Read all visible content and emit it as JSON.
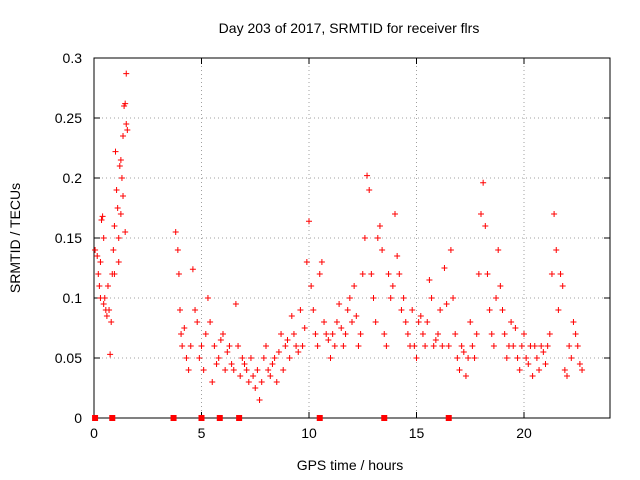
{
  "chart_data": {
    "type": "scatter",
    "title": "Day 203 of 2017, SRMTID for receiver flrs",
    "xlabel": "GPS time / hours",
    "ylabel": "SRMTID / TECUs",
    "xlim": [
      0,
      24
    ],
    "ylim": [
      0,
      0.3
    ],
    "xticks": [
      0,
      5,
      10,
      15,
      20
    ],
    "xtick_labels": [
      "0",
      "5",
      "10",
      "15",
      "20"
    ],
    "yticks": [
      0,
      0.05,
      0.1,
      0.15,
      0.2,
      0.25,
      0.3
    ],
    "ytick_labels": [
      "0",
      "0.05",
      "0.1",
      "0.15",
      "0.2",
      "0.25",
      "0.3"
    ],
    "grid": true,
    "marker": "plus",
    "color": "#ff0000",
    "points": [
      [
        0.05,
        0.14
      ],
      [
        0.15,
        0.135
      ],
      [
        0.2,
        0.12
      ],
      [
        0.25,
        0.11
      ],
      [
        0.3,
        0.13
      ],
      [
        0.35,
        0.165
      ],
      [
        0.4,
        0.168
      ],
      [
        0.45,
        0.15
      ],
      [
        0.5,
        0.1
      ],
      [
        0.55,
        0.09
      ],
      [
        0.6,
        0.085
      ],
      [
        0.65,
        0.11
      ],
      [
        0.7,
        0.09
      ],
      [
        0.75,
        0.053
      ],
      [
        0.8,
        0.08
      ],
      [
        0.85,
        0.12
      ],
      [
        0.9,
        0.14
      ],
      [
        0.95,
        0.16
      ],
      [
        1.0,
        0.222
      ],
      [
        1.05,
        0.19
      ],
      [
        1.1,
        0.175
      ],
      [
        1.15,
        0.13
      ],
      [
        1.2,
        0.21
      ],
      [
        1.25,
        0.215
      ],
      [
        1.3,
        0.2
      ],
      [
        1.35,
        0.235
      ],
      [
        1.4,
        0.26
      ],
      [
        1.45,
        0.262
      ],
      [
        1.5,
        0.245
      ],
      [
        1.55,
        0.24
      ],
      [
        1.5,
        0.287
      ],
      [
        1.45,
        0.155
      ],
      [
        1.35,
        0.185
      ],
      [
        1.25,
        0.17
      ],
      [
        1.15,
        0.15
      ],
      [
        0.95,
        0.12
      ],
      [
        0.45,
        0.095
      ],
      [
        0.3,
        0.1
      ],
      [
        3.8,
        0.155
      ],
      [
        3.9,
        0.14
      ],
      [
        3.95,
        0.12
      ],
      [
        4.0,
        0.09
      ],
      [
        4.05,
        0.07
      ],
      [
        4.1,
        0.06
      ],
      [
        4.2,
        0.075
      ],
      [
        4.3,
        0.05
      ],
      [
        4.4,
        0.04
      ],
      [
        4.5,
        0.06
      ],
      [
        4.6,
        0.124
      ],
      [
        4.7,
        0.09
      ],
      [
        4.8,
        0.08
      ],
      [
        4.9,
        0.05
      ],
      [
        5.0,
        0.06
      ],
      [
        5.1,
        0.04
      ],
      [
        5.2,
        0.07
      ],
      [
        5.3,
        0.1
      ],
      [
        5.4,
        0.08
      ],
      [
        5.5,
        0.03
      ],
      [
        5.6,
        0.06
      ],
      [
        5.7,
        0.045
      ],
      [
        5.8,
        0.05
      ],
      [
        5.9,
        0.065
      ],
      [
        6.0,
        0.07
      ],
      [
        6.1,
        0.04
      ],
      [
        6.2,
        0.055
      ],
      [
        6.3,
        0.06
      ],
      [
        6.4,
        0.045
      ],
      [
        6.5,
        0.04
      ],
      [
        6.6,
        0.095
      ],
      [
        6.7,
        0.06
      ],
      [
        6.8,
        0.035
      ],
      [
        6.9,
        0.05
      ],
      [
        7.0,
        0.045
      ],
      [
        7.1,
        0.04
      ],
      [
        7.2,
        0.03
      ],
      [
        7.3,
        0.05
      ],
      [
        7.4,
        0.035
      ],
      [
        7.5,
        0.025
      ],
      [
        7.6,
        0.04
      ],
      [
        7.7,
        0.015
      ],
      [
        7.8,
        0.03
      ],
      [
        7.9,
        0.05
      ],
      [
        8.0,
        0.06
      ],
      [
        8.1,
        0.04
      ],
      [
        8.2,
        0.035
      ],
      [
        8.3,
        0.045
      ],
      [
        8.4,
        0.05
      ],
      [
        8.5,
        0.03
      ],
      [
        8.6,
        0.055
      ],
      [
        8.7,
        0.07
      ],
      [
        8.8,
        0.04
      ],
      [
        8.9,
        0.06
      ],
      [
        9.0,
        0.065
      ],
      [
        9.1,
        0.05
      ],
      [
        9.2,
        0.085
      ],
      [
        9.3,
        0.07
      ],
      [
        9.4,
        0.06
      ],
      [
        9.5,
        0.055
      ],
      [
        9.6,
        0.09
      ],
      [
        9.7,
        0.06
      ],
      [
        9.8,
        0.075
      ],
      [
        9.9,
        0.13
      ],
      [
        10.0,
        0.164
      ],
      [
        10.1,
        0.11
      ],
      [
        10.2,
        0.09
      ],
      [
        10.3,
        0.07
      ],
      [
        10.4,
        0.06
      ],
      [
        10.5,
        0.12
      ],
      [
        10.6,
        0.13
      ],
      [
        10.7,
        0.08
      ],
      [
        10.8,
        0.07
      ],
      [
        10.9,
        0.065
      ],
      [
        11.0,
        0.05
      ],
      [
        11.1,
        0.07
      ],
      [
        11.2,
        0.06
      ],
      [
        11.3,
        0.08
      ],
      [
        11.4,
        0.095
      ],
      [
        11.5,
        0.075
      ],
      [
        11.6,
        0.06
      ],
      [
        11.7,
        0.07
      ],
      [
        11.8,
        0.09
      ],
      [
        11.9,
        0.1
      ],
      [
        12.0,
        0.08
      ],
      [
        12.1,
        0.11
      ],
      [
        12.2,
        0.085
      ],
      [
        12.3,
        0.06
      ],
      [
        12.4,
        0.07
      ],
      [
        12.5,
        0.12
      ],
      [
        12.6,
        0.15
      ],
      [
        12.7,
        0.202
      ],
      [
        12.8,
        0.19
      ],
      [
        12.9,
        0.12
      ],
      [
        13.0,
        0.1
      ],
      [
        13.1,
        0.08
      ],
      [
        13.2,
        0.15
      ],
      [
        13.3,
        0.16
      ],
      [
        13.4,
        0.14
      ],
      [
        13.5,
        0.07
      ],
      [
        13.6,
        0.06
      ],
      [
        13.7,
        0.12
      ],
      [
        13.8,
        0.1
      ],
      [
        13.9,
        0.11
      ],
      [
        14.0,
        0.17
      ],
      [
        14.1,
        0.135
      ],
      [
        14.2,
        0.12
      ],
      [
        14.3,
        0.09
      ],
      [
        14.4,
        0.1
      ],
      [
        14.5,
        0.08
      ],
      [
        14.6,
        0.07
      ],
      [
        14.7,
        0.06
      ],
      [
        14.8,
        0.09
      ],
      [
        14.9,
        0.06
      ],
      [
        15.0,
        0.05
      ],
      [
        15.1,
        0.08
      ],
      [
        15.2,
        0.085
      ],
      [
        15.3,
        0.07
      ],
      [
        15.4,
        0.06
      ],
      [
        15.5,
        0.08
      ],
      [
        15.6,
        0.115
      ],
      [
        15.7,
        0.1
      ],
      [
        15.8,
        0.06
      ],
      [
        15.9,
        0.065
      ],
      [
        16.0,
        0.07
      ],
      [
        16.1,
        0.09
      ],
      [
        16.2,
        0.06
      ],
      [
        16.3,
        0.125
      ],
      [
        16.4,
        0.095
      ],
      [
        16.5,
        0.06
      ],
      [
        16.6,
        0.14
      ],
      [
        16.7,
        0.1
      ],
      [
        16.8,
        0.07
      ],
      [
        16.9,
        0.05
      ],
      [
        17.0,
        0.04
      ],
      [
        17.1,
        0.06
      ],
      [
        17.2,
        0.055
      ],
      [
        17.3,
        0.035
      ],
      [
        17.4,
        0.05
      ],
      [
        17.5,
        0.08
      ],
      [
        17.6,
        0.06
      ],
      [
        17.7,
        0.05
      ],
      [
        17.8,
        0.07
      ],
      [
        17.9,
        0.12
      ],
      [
        18.0,
        0.17
      ],
      [
        18.1,
        0.196
      ],
      [
        18.2,
        0.16
      ],
      [
        18.3,
        0.12
      ],
      [
        18.4,
        0.09
      ],
      [
        18.5,
        0.07
      ],
      [
        18.6,
        0.06
      ],
      [
        18.7,
        0.1
      ],
      [
        18.8,
        0.14
      ],
      [
        18.9,
        0.11
      ],
      [
        19.0,
        0.09
      ],
      [
        19.1,
        0.07
      ],
      [
        19.2,
        0.05
      ],
      [
        19.3,
        0.06
      ],
      [
        19.4,
        0.08
      ],
      [
        19.5,
        0.06
      ],
      [
        19.6,
        0.075
      ],
      [
        19.7,
        0.05
      ],
      [
        19.8,
        0.04
      ],
      [
        19.9,
        0.06
      ],
      [
        20.0,
        0.07
      ],
      [
        20.1,
        0.05
      ],
      [
        20.2,
        0.045
      ],
      [
        20.3,
        0.06
      ],
      [
        20.4,
        0.035
      ],
      [
        20.5,
        0.06
      ],
      [
        20.6,
        0.05
      ],
      [
        20.7,
        0.04
      ],
      [
        20.8,
        0.06
      ],
      [
        20.9,
        0.055
      ],
      [
        21.0,
        0.045
      ],
      [
        21.1,
        0.06
      ],
      [
        21.2,
        0.07
      ],
      [
        21.3,
        0.12
      ],
      [
        21.4,
        0.17
      ],
      [
        21.5,
        0.14
      ],
      [
        21.6,
        0.09
      ],
      [
        21.7,
        0.12
      ],
      [
        21.8,
        0.11
      ],
      [
        21.9,
        0.04
      ],
      [
        22.0,
        0.035
      ],
      [
        22.1,
        0.06
      ],
      [
        22.2,
        0.05
      ],
      [
        22.3,
        0.08
      ],
      [
        22.4,
        0.07
      ],
      [
        22.5,
        0.06
      ],
      [
        22.6,
        0.045
      ],
      [
        22.7,
        0.04
      ]
    ],
    "gap_markers_x": [
      0.05,
      0.85,
      3.7,
      5.0,
      5.85,
      6.75,
      10.5,
      13.5,
      16.5
    ]
  }
}
